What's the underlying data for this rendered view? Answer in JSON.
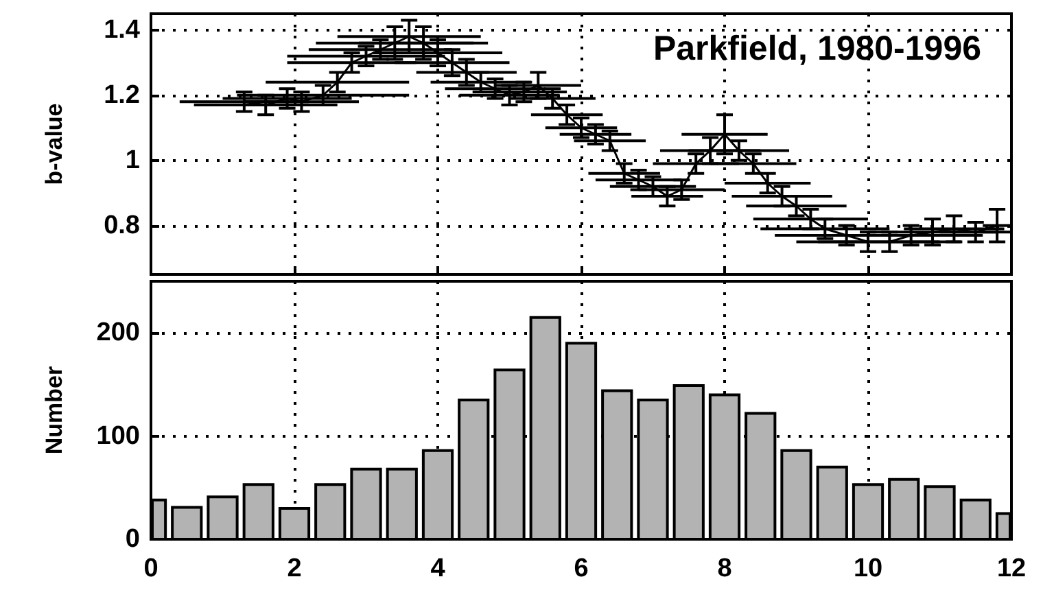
{
  "chart_data": [
    {
      "type": "line",
      "title": "Parkfield, 1980-1996",
      "ylabel": "b-value",
      "x": [
        1.3,
        1.6,
        1.9,
        2.1,
        2.4,
        2.6,
        2.8,
        3.0,
        3.2,
        3.4,
        3.6,
        3.8,
        4.0,
        4.2,
        4.4,
        4.6,
        4.8,
        5.0,
        5.2,
        5.4,
        5.6,
        5.8,
        6.0,
        6.2,
        6.4,
        6.6,
        6.8,
        7.0,
        7.2,
        7.4,
        7.6,
        7.8,
        8.0,
        8.2,
        8.4,
        8.6,
        8.8,
        9.0,
        9.2,
        9.4,
        9.7,
        10.0,
        10.3,
        10.6,
        10.9,
        11.2,
        11.5,
        11.8
      ],
      "values": [
        1.18,
        1.17,
        1.19,
        1.18,
        1.2,
        1.24,
        1.3,
        1.32,
        1.34,
        1.36,
        1.38,
        1.36,
        1.33,
        1.3,
        1.27,
        1.24,
        1.22,
        1.2,
        1.21,
        1.23,
        1.19,
        1.14,
        1.1,
        1.08,
        1.06,
        0.96,
        0.94,
        0.92,
        0.89,
        0.91,
        0.99,
        1.03,
        1.08,
        1.03,
        0.99,
        0.93,
        0.89,
        0.86,
        0.82,
        0.79,
        0.77,
        0.75,
        0.75,
        0.77,
        0.78,
        0.79,
        0.78,
        0.8
      ],
      "errors": [
        0.03,
        0.03,
        0.03,
        0.03,
        0.03,
        0.03,
        0.03,
        0.03,
        0.03,
        0.05,
        0.05,
        0.05,
        0.04,
        0.04,
        0.04,
        0.03,
        0.03,
        0.03,
        0.03,
        0.04,
        0.03,
        0.03,
        0.03,
        0.03,
        0.03,
        0.03,
        0.03,
        0.03,
        0.03,
        0.03,
        0.03,
        0.04,
        0.06,
        0.03,
        0.03,
        0.03,
        0.03,
        0.03,
        0.03,
        0.03,
        0.03,
        0.03,
        0.03,
        0.03,
        0.04,
        0.04,
        0.03,
        0.05
      ],
      "xerrors": [
        0.9,
        1.0,
        0.9,
        0.8,
        1.2,
        1.0,
        0.9,
        1.1,
        1.0,
        1.1,
        1.0,
        0.9,
        0.9,
        0.8,
        0.7,
        0.7,
        0.7,
        0.7,
        0.6,
        0.6,
        0.6,
        0.5,
        0.5,
        0.5,
        0.5,
        0.5,
        0.6,
        0.6,
        0.5,
        0.6,
        0.6,
        0.7,
        0.6,
        0.7,
        0.6,
        0.6,
        0.7,
        0.7,
        0.8,
        0.9,
        1.0,
        1.0,
        1.0,
        1.0,
        0.9,
        0.7,
        0.5,
        0.2
      ],
      "color": "#000000",
      "marker": "none",
      "line_style": "solid",
      "xlim": [
        0,
        12
      ],
      "xticks": [
        0,
        2,
        4,
        6,
        8,
        10,
        12
      ],
      "ylim": [
        0.65,
        1.45
      ],
      "yticks": [
        0.8,
        1,
        1.2,
        1.4
      ],
      "grid": true,
      "tick_labels": "y"
    },
    {
      "type": "histogram",
      "ylabel": "Number",
      "bins": [
        0,
        0.25,
        0.75,
        1.25,
        1.75,
        2.25,
        2.75,
        3.25,
        3.75,
        4.25,
        4.75,
        5.25,
        5.75,
        6.25,
        6.75,
        7.25,
        7.75,
        8.25,
        8.75,
        9.25,
        9.75,
        10.25,
        10.75,
        11.25,
        11.75,
        12
      ],
      "values": [
        38,
        31,
        41,
        53,
        30,
        53,
        68,
        68,
        86,
        135,
        164,
        215,
        190,
        144,
        135,
        149,
        140,
        122,
        86,
        70,
        53,
        58,
        51,
        38,
        25
      ],
      "color": "#b3b3b3",
      "xlim": [
        0,
        12
      ],
      "xticks": [
        0,
        2,
        4,
        6,
        8,
        10,
        12
      ],
      "ylim": [
        0,
        250
      ],
      "yticks": [
        0,
        100,
        200
      ],
      "grid": true
    }
  ]
}
